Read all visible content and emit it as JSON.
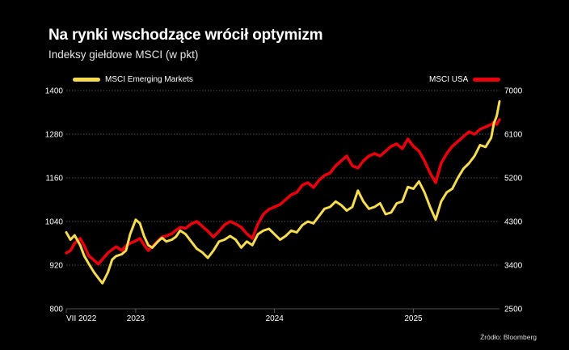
{
  "header": {
    "title": "Na rynki wschodzące wrócił optymizm",
    "subtitle": "Indeksy giełdowe MSCI (w pkt)"
  },
  "source": "Źródło: Bloomberg",
  "chart_data": {
    "type": "line",
    "title": "Na rynki wschodzące wrócił optymizm",
    "subtitle": "Indeksy giełdowe MSCI (w pkt)",
    "colors": {
      "em": "#f5dc50",
      "usa": "#e8000c",
      "grid": "#6e6e6e",
      "background": "#000000"
    },
    "x_ticks": [
      {
        "label": "VII 2022",
        "x": 2022.5
      },
      {
        "label": "2023",
        "x": 2023.0
      },
      {
        "label": "2024",
        "x": 2024.0
      },
      {
        "label": "2025",
        "x": 2025.0
      }
    ],
    "xlim": [
      2022.5,
      2025.62
    ],
    "y_left": {
      "ticks": [
        800,
        920,
        1040,
        1160,
        1280,
        1400
      ],
      "lim": [
        800,
        1400
      ]
    },
    "y_right": {
      "ticks": [
        2500,
        3400,
        4300,
        5200,
        6100,
        7000
      ],
      "lim": [
        2500,
        7000
      ]
    },
    "grid": true,
    "legend": [
      "top-left",
      "top-right"
    ],
    "series": [
      {
        "name": "MSCI Emerging Markets",
        "axis": "left",
        "x": [
          2022.5,
          2022.53,
          2022.56,
          2022.6,
          2022.63,
          2022.66,
          2022.7,
          2022.73,
          2022.76,
          2022.8,
          2022.83,
          2022.86,
          2022.9,
          2022.93,
          2022.96,
          2023.0,
          2023.03,
          2023.06,
          2023.09,
          2023.12,
          2023.16,
          2023.19,
          2023.22,
          2023.26,
          2023.29,
          2023.32,
          2023.36,
          2023.4,
          2023.44,
          2023.48,
          2023.52,
          2023.56,
          2023.6,
          2023.64,
          2023.68,
          2023.72,
          2023.76,
          2023.8,
          2023.84,
          2023.88,
          2023.92,
          2023.96,
          2024.0,
          2024.04,
          2024.08,
          2024.12,
          2024.16,
          2024.2,
          2024.24,
          2024.28,
          2024.32,
          2024.36,
          2024.4,
          2024.44,
          2024.48,
          2024.52,
          2024.56,
          2024.6,
          2024.64,
          2024.68,
          2024.72,
          2024.76,
          2024.8,
          2024.84,
          2024.88,
          2024.92,
          2024.96,
          2025.0,
          2025.04,
          2025.08,
          2025.12,
          2025.16,
          2025.2,
          2025.24,
          2025.28,
          2025.32,
          2025.36,
          2025.4,
          2025.44,
          2025.48,
          2025.52,
          2025.56,
          2025.58,
          2025.6,
          2025.62
        ],
        "values": [
          1010,
          990,
          1002,
          975,
          945,
          925,
          900,
          885,
          870,
          900,
          935,
          945,
          950,
          960,
          1005,
          1045,
          1035,
          1000,
          975,
          968,
          985,
          995,
          985,
          990,
          998,
          1015,
          1005,
          985,
          965,
          955,
          940,
          960,
          985,
          990,
          1000,
          990,
          968,
          985,
          975,
          1005,
          1015,
          1020,
          1005,
          990,
          1000,
          1015,
          1010,
          1030,
          1040,
          1035,
          1055,
          1075,
          1080,
          1095,
          1085,
          1070,
          1080,
          1125,
          1095,
          1075,
          1080,
          1090,
          1060,
          1065,
          1090,
          1095,
          1135,
          1130,
          1150,
          1120,
          1080,
          1045,
          1095,
          1120,
          1130,
          1160,
          1185,
          1200,
          1220,
          1250,
          1245,
          1270,
          1310,
          1330,
          1370
        ]
      },
      {
        "name": "MSCI USA",
        "axis": "right",
        "x": [
          2022.5,
          2022.53,
          2022.56,
          2022.6,
          2022.63,
          2022.66,
          2022.7,
          2022.73,
          2022.76,
          2022.8,
          2022.83,
          2022.86,
          2022.9,
          2022.93,
          2022.96,
          2023.0,
          2023.03,
          2023.06,
          2023.09,
          2023.12,
          2023.16,
          2023.19,
          2023.22,
          2023.26,
          2023.29,
          2023.32,
          2023.36,
          2023.4,
          2023.44,
          2023.48,
          2023.52,
          2023.56,
          2023.6,
          2023.64,
          2023.68,
          2023.72,
          2023.76,
          2023.8,
          2023.84,
          2023.88,
          2023.92,
          2023.96,
          2024.0,
          2024.04,
          2024.08,
          2024.12,
          2024.16,
          2024.2,
          2024.24,
          2024.28,
          2024.32,
          2024.36,
          2024.4,
          2024.44,
          2024.48,
          2024.52,
          2024.56,
          2024.6,
          2024.64,
          2024.68,
          2024.72,
          2024.76,
          2024.8,
          2024.84,
          2024.88,
          2024.92,
          2024.96,
          2025.0,
          2025.04,
          2025.08,
          2025.12,
          2025.16,
          2025.2,
          2025.24,
          2025.28,
          2025.32,
          2025.36,
          2025.4,
          2025.44,
          2025.48,
          2025.52,
          2025.56,
          2025.58,
          2025.6,
          2025.62
        ],
        "values": [
          3650,
          3700,
          3850,
          3950,
          3800,
          3600,
          3500,
          3420,
          3520,
          3650,
          3720,
          3780,
          3700,
          3800,
          3850,
          3900,
          3950,
          3820,
          3700,
          3780,
          3900,
          3980,
          4000,
          4050,
          4120,
          4180,
          4160,
          4250,
          4300,
          4200,
          4100,
          3980,
          4100,
          4230,
          4300,
          4250,
          4180,
          4050,
          3950,
          4250,
          4450,
          4550,
          4600,
          4650,
          4750,
          4850,
          4900,
          5050,
          5100,
          5000,
          5150,
          5250,
          5300,
          5450,
          5550,
          5650,
          5450,
          5400,
          5550,
          5650,
          5700,
          5650,
          5750,
          5850,
          5900,
          5800,
          6000,
          5850,
          5750,
          5550,
          5300,
          5100,
          5500,
          5700,
          5850,
          5950,
          6050,
          6150,
          6100,
          6200,
          6250,
          6300,
          6350,
          6300,
          6400
        ]
      }
    ]
  }
}
